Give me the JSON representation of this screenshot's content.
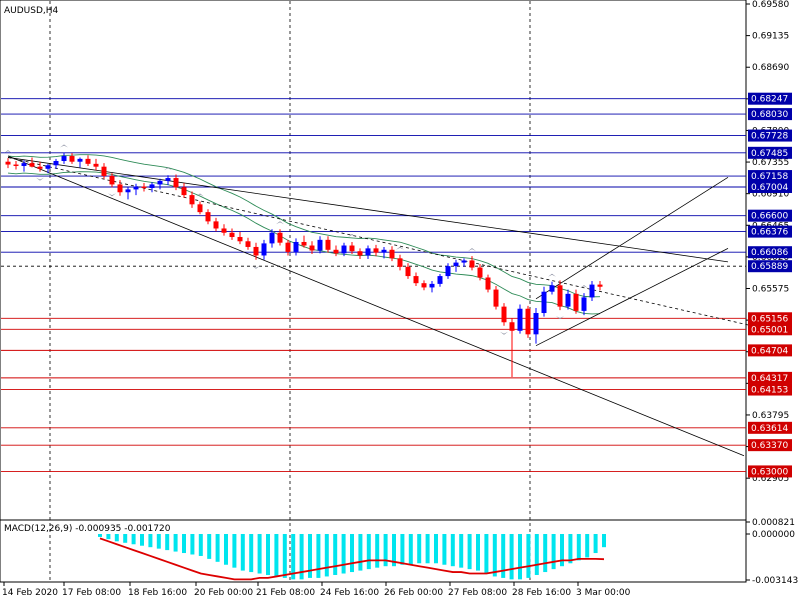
{
  "symbol_label": "AUDUSD,H4",
  "macd_label": "MACD(12,26,9) -0.000935 -0.001720",
  "chart_data": {
    "type": "candlestick",
    "price_range": [
      0.6226,
      0.6958
    ],
    "price_ticks": [
      "0.69580",
      "0.69135",
      "0.68690",
      "0.68245",
      "0.67800",
      "0.67355",
      "0.66910",
      "0.66465",
      "0.66020",
      "0.65575",
      "0.65130",
      "0.64685",
      "0.64240",
      "0.63795",
      "0.63350",
      "0.62905"
    ],
    "x_labels": [
      "14 Feb 2020",
      "17 Feb 08:00",
      "18 Feb 16:00",
      "20 Feb 00:00",
      "21 Feb 08:00",
      "24 Feb 16:00",
      "26 Feb 00:00",
      "27 Feb 08:00",
      "28 Feb 16:00",
      "3 Mar 00:00"
    ],
    "colors": {
      "bull": "#0000ff",
      "bear": "#ff0000",
      "blue_level": "#0000aa",
      "red_level": "#d00000",
      "band": "#2e8b57",
      "trend": "#000000",
      "histogram": "#00e5ee",
      "signal": "#dd0000"
    },
    "blue_levels": [
      0.68247,
      0.6803,
      0.67728,
      0.67485,
      0.67158,
      0.67004,
      0.666,
      0.66376,
      0.66086,
      0.65889
    ],
    "red_levels": [
      0.65156,
      0.65001,
      0.64704,
      0.64317,
      0.64153,
      0.63614,
      0.6337,
      0.63
    ],
    "highlight_level": 0.65889,
    "macd": {
      "max": "0.000821",
      "zero": "0.000000",
      "min": "-0.003143",
      "range": [
        -0.003143,
        0.000821
      ]
    },
    "candles": [
      [
        0.6736,
        0.6741,
        0.6727,
        0.6732
      ],
      [
        0.6732,
        0.6737,
        0.6725,
        0.673
      ],
      [
        0.673,
        0.6738,
        0.6722,
        0.6734
      ],
      [
        0.6734,
        0.6742,
        0.6728,
        0.6729
      ],
      [
        0.6729,
        0.6736,
        0.6722,
        0.6726
      ],
      [
        0.6726,
        0.6733,
        0.672,
        0.6731
      ],
      [
        0.6731,
        0.674,
        0.6726,
        0.6737
      ],
      [
        0.6737,
        0.6749,
        0.6733,
        0.6744
      ],
      [
        0.6744,
        0.6748,
        0.6733,
        0.6736
      ],
      [
        0.6736,
        0.6742,
        0.6728,
        0.674
      ],
      [
        0.674,
        0.6745,
        0.673,
        0.6733
      ],
      [
        0.6733,
        0.674,
        0.6724,
        0.6729
      ],
      [
        0.6729,
        0.6734,
        0.6712,
        0.6716
      ],
      [
        0.6716,
        0.672,
        0.67,
        0.6704
      ],
      [
        0.6704,
        0.671,
        0.6688,
        0.6693
      ],
      [
        0.6693,
        0.67,
        0.6683,
        0.6697
      ],
      [
        0.6697,
        0.6705,
        0.6689,
        0.6701
      ],
      [
        0.6701,
        0.6706,
        0.6694,
        0.6699
      ],
      [
        0.6699,
        0.6707,
        0.6693,
        0.6704
      ],
      [
        0.6704,
        0.6712,
        0.6697,
        0.6709
      ],
      [
        0.6709,
        0.6717,
        0.6703,
        0.6713
      ],
      [
        0.6713,
        0.6718,
        0.6696,
        0.67
      ],
      [
        0.67,
        0.6706,
        0.6685,
        0.6689
      ],
      [
        0.6689,
        0.6694,
        0.6671,
        0.6676
      ],
      [
        0.6676,
        0.668,
        0.6662,
        0.6665
      ],
      [
        0.6665,
        0.6669,
        0.6648,
        0.6652
      ],
      [
        0.6652,
        0.6657,
        0.6638,
        0.6642
      ],
      [
        0.6642,
        0.6648,
        0.6632,
        0.6636
      ],
      [
        0.6636,
        0.6642,
        0.6626,
        0.663
      ],
      [
        0.663,
        0.6637,
        0.662,
        0.6624
      ],
      [
        0.6624,
        0.6629,
        0.6612,
        0.6616
      ],
      [
        0.6616,
        0.6622,
        0.6598,
        0.6604
      ],
      [
        0.6604,
        0.6626,
        0.6598,
        0.6621
      ],
      [
        0.6621,
        0.6641,
        0.6615,
        0.6636
      ],
      [
        0.6636,
        0.6641,
        0.6618,
        0.6622
      ],
      [
        0.6622,
        0.6626,
        0.6604,
        0.6609
      ],
      [
        0.6609,
        0.6628,
        0.6604,
        0.6623
      ],
      [
        0.6623,
        0.6632,
        0.6615,
        0.6618
      ],
      [
        0.6618,
        0.6624,
        0.6606,
        0.6611
      ],
      [
        0.6611,
        0.6631,
        0.6607,
        0.6626
      ],
      [
        0.6626,
        0.6631,
        0.6608,
        0.6612
      ],
      [
        0.6612,
        0.6618,
        0.6603,
        0.6607
      ],
      [
        0.6607,
        0.6622,
        0.6603,
        0.6618
      ],
      [
        0.6618,
        0.6623,
        0.6606,
        0.661
      ],
      [
        0.661,
        0.6614,
        0.6599,
        0.6604
      ],
      [
        0.6604,
        0.6618,
        0.6599,
        0.6614
      ],
      [
        0.6614,
        0.6619,
        0.6603,
        0.6608
      ],
      [
        0.6608,
        0.6616,
        0.66,
        0.6612
      ],
      [
        0.6612,
        0.6617,
        0.6596,
        0.66
      ],
      [
        0.66,
        0.6605,
        0.6583,
        0.6588
      ],
      [
        0.6588,
        0.6593,
        0.6571,
        0.6575
      ],
      [
        0.6575,
        0.658,
        0.6561,
        0.6565
      ],
      [
        0.6565,
        0.6569,
        0.6555,
        0.6559
      ],
      [
        0.6559,
        0.6568,
        0.6552,
        0.6564
      ],
      [
        0.6564,
        0.6578,
        0.656,
        0.6575
      ],
      [
        0.6575,
        0.6593,
        0.6571,
        0.6589
      ],
      [
        0.6589,
        0.6598,
        0.6581,
        0.6594
      ],
      [
        0.6594,
        0.66,
        0.6588,
        0.6597
      ],
      [
        0.6597,
        0.6603,
        0.6583,
        0.6587
      ],
      [
        0.6587,
        0.6592,
        0.6569,
        0.6573
      ],
      [
        0.6573,
        0.6577,
        0.6552,
        0.6556
      ],
      [
        0.6556,
        0.6561,
        0.6528,
        0.6532
      ],
      [
        0.6532,
        0.6537,
        0.6505,
        0.651
      ],
      [
        0.651,
        0.6516,
        0.6433,
        0.6498
      ],
      [
        0.6498,
        0.6535,
        0.6494,
        0.6529
      ],
      [
        0.6529,
        0.6533,
        0.6488,
        0.6493
      ],
      [
        0.6493,
        0.653,
        0.648,
        0.6523
      ],
      [
        0.6523,
        0.656,
        0.6518,
        0.6553
      ],
      [
        0.6553,
        0.6567,
        0.6549,
        0.6562
      ],
      [
        0.6562,
        0.6569,
        0.6527,
        0.6532
      ],
      [
        0.6532,
        0.6556,
        0.6528,
        0.655
      ],
      [
        0.655,
        0.6556,
        0.6522,
        0.6526
      ],
      [
        0.6526,
        0.6551,
        0.652,
        0.6545
      ],
      [
        0.6545,
        0.6568,
        0.654,
        0.6563
      ],
      [
        0.6563,
        0.6568,
        0.6555,
        0.656
      ]
    ],
    "macd_hist": [
      -0.0002,
      -0.00035,
      -0.0005,
      -0.0006,
      -0.0007,
      -0.0008,
      -0.0009,
      -0.001,
      -0.0011,
      -0.0012,
      -0.0013,
      -0.0014,
      -0.0015,
      -0.0017,
      -0.0019,
      -0.0021,
      -0.0023,
      -0.0025,
      -0.0026,
      -0.0027,
      -0.0028,
      -0.0029,
      -0.003,
      -0.0031,
      -0.0031,
      -0.003,
      -0.003,
      -0.0029,
      -0.0028,
      -0.0027,
      -0.0026,
      -0.0025,
      -0.0024,
      -0.0023,
      -0.0022,
      -0.0022,
      -0.0021,
      -0.0021,
      -0.002,
      -0.002,
      -0.002,
      -0.0021,
      -0.0022,
      -0.0023,
      -0.0024,
      -0.0025,
      -0.0027,
      -0.0029,
      -0.003,
      -0.0031,
      -0.0031,
      -0.003,
      -0.0028,
      -0.0026,
      -0.0024,
      -0.0022,
      -0.002,
      -0.0018,
      -0.0016,
      -0.0013,
      -0.0009
    ],
    "macd_signal": [
      -0.0003,
      -0.0005,
      -0.0007,
      -0.0009,
      -0.0011,
      -0.0013,
      -0.0015,
      -0.0017,
      -0.0019,
      -0.0021,
      -0.0023,
      -0.0025,
      -0.0027,
      -0.0028,
      -0.0029,
      -0.003,
      -0.0031,
      -0.0031,
      -0.0031,
      -0.003,
      -0.003,
      -0.0029,
      -0.0028,
      -0.0027,
      -0.0026,
      -0.0025,
      -0.0024,
      -0.0023,
      -0.0022,
      -0.0021,
      -0.002,
      -0.0019,
      -0.0018,
      -0.0018,
      -0.0018,
      -0.0019,
      -0.002,
      -0.0021,
      -0.0022,
      -0.0023,
      -0.0024,
      -0.0025,
      -0.0026,
      -0.0026,
      -0.0027,
      -0.0027,
      -0.0027,
      -0.0026,
      -0.0025,
      -0.0024,
      -0.0023,
      -0.0022,
      -0.0021,
      -0.002,
      -0.0019,
      -0.0018,
      -0.0018,
      -0.0017,
      -0.0017,
      -0.0017,
      -0.00172
    ]
  }
}
